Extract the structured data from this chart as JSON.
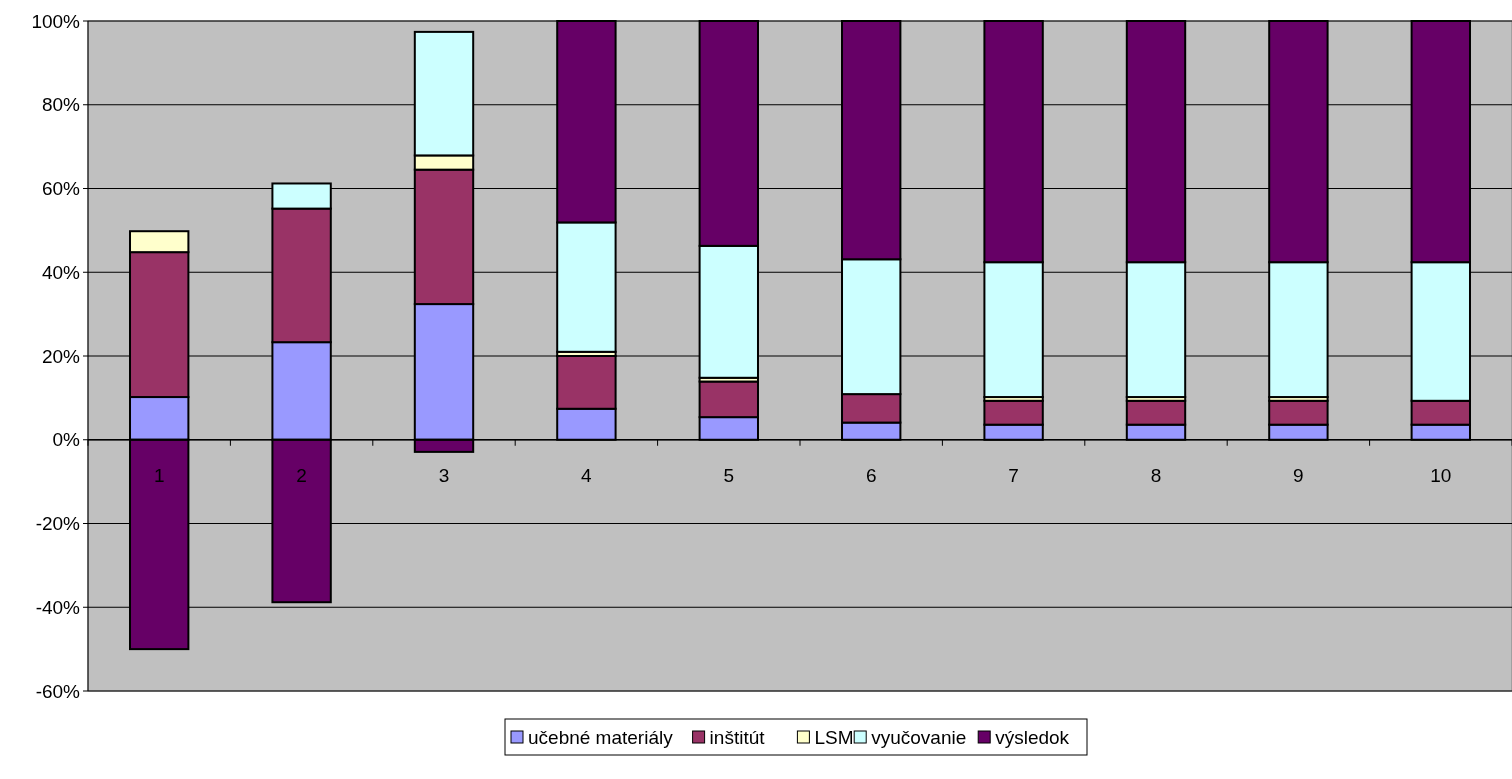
{
  "chart_data": {
    "type": "bar",
    "stacked": true,
    "categories": [
      "1",
      "2",
      "3",
      "4",
      "5",
      "6",
      "7",
      "8",
      "9",
      "10"
    ],
    "series": [
      {
        "name": "učebné materiály",
        "color": "#9999ff",
        "values": [
          10.2,
          23.3,
          32.4,
          7.4,
          5.4,
          4.1,
          3.6,
          3.6,
          3.6,
          3.6
        ]
      },
      {
        "name": "inštitút",
        "color": "#993366",
        "values": [
          34.6,
          31.9,
          32.1,
          12.6,
          8.5,
          6.8,
          5.7,
          5.7,
          5.7,
          5.7
        ]
      },
      {
        "name": "LSM",
        "color": "#ffffcc",
        "values": [
          5.0,
          0,
          3.4,
          1.0,
          0.9,
          0,
          0.9,
          0.9,
          0.9,
          0
        ]
      },
      {
        "name": "vyučovanie",
        "color": "#ccffff",
        "values": [
          0,
          6.0,
          29.5,
          30.9,
          31.5,
          32.2,
          32.2,
          32.2,
          32.2,
          33.1
        ]
      },
      {
        "name": "výsledok",
        "color": "#660066",
        "values": [
          -50.0,
          -38.8,
          -2.9,
          48.1,
          53.7,
          56.9,
          57.6,
          57.6,
          57.6,
          57.6
        ]
      }
    ],
    "ylim": [
      -60,
      100
    ],
    "yticks": [
      {
        "value": -60,
        "label": "-60%"
      },
      {
        "value": -40,
        "label": "-40%"
      },
      {
        "value": -20,
        "label": "-20%"
      },
      {
        "value": 0,
        "label": "0%"
      },
      {
        "value": 20,
        "label": "20%"
      },
      {
        "value": 40,
        "label": "40%"
      },
      {
        "value": 60,
        "label": "60%"
      },
      {
        "value": 80,
        "label": "80%"
      },
      {
        "value": 100,
        "label": "100%"
      }
    ],
    "grid": "y",
    "legend": "bottom"
  }
}
